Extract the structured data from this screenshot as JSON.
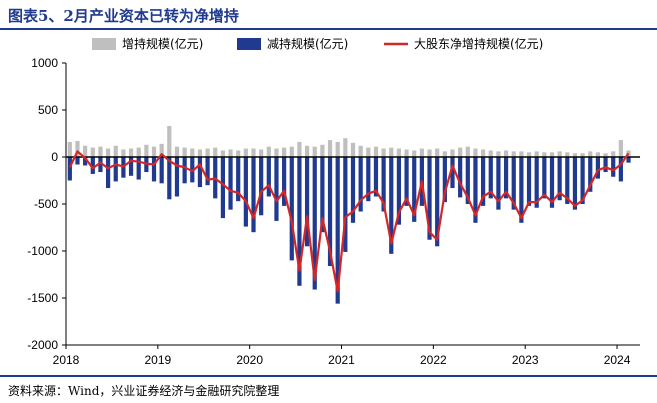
{
  "title": "图表5、2月产业资本已转为净增持",
  "source": "资料来源：Wind，兴业证券经济与金融研究院整理",
  "chart_data": {
    "type": "bar",
    "legend": [
      {
        "name": "增持规模(亿元)",
        "color": "#bfbfbf",
        "kind": "bar"
      },
      {
        "name": "减持规模(亿元)",
        "color": "#1f3a8f",
        "kind": "bar"
      },
      {
        "name": "大股东净增持规模(亿元)",
        "color": "#d62728",
        "kind": "line"
      }
    ],
    "legend_position": "top",
    "xlim": [
      2018.0,
      2024.25
    ],
    "ylim": [
      -2000,
      1000
    ],
    "yticks": [
      1000,
      500,
      0,
      -500,
      -1000,
      -1500,
      -2000
    ],
    "xticks": [
      "2018",
      "2019",
      "2020",
      "2021",
      "2022",
      "2023",
      "2024"
    ],
    "x": [
      "2018-01",
      "2018-02",
      "2018-03",
      "2018-04",
      "2018-05",
      "2018-06",
      "2018-07",
      "2018-08",
      "2018-09",
      "2018-10",
      "2018-11",
      "2018-12",
      "2019-01",
      "2019-02",
      "2019-03",
      "2019-04",
      "2019-05",
      "2019-06",
      "2019-07",
      "2019-08",
      "2019-09",
      "2019-10",
      "2019-11",
      "2019-12",
      "2020-01",
      "2020-02",
      "2020-03",
      "2020-04",
      "2020-05",
      "2020-06",
      "2020-07",
      "2020-08",
      "2020-09",
      "2020-10",
      "2020-11",
      "2020-12",
      "2021-01",
      "2021-02",
      "2021-03",
      "2021-04",
      "2021-05",
      "2021-06",
      "2021-07",
      "2021-08",
      "2021-09",
      "2021-10",
      "2021-11",
      "2021-12",
      "2022-01",
      "2022-02",
      "2022-03",
      "2022-04",
      "2022-05",
      "2022-06",
      "2022-07",
      "2022-08",
      "2022-09",
      "2022-10",
      "2022-11",
      "2022-12",
      "2023-01",
      "2023-02",
      "2023-03",
      "2023-04",
      "2023-05",
      "2023-06",
      "2023-07",
      "2023-08",
      "2023-09",
      "2023-10",
      "2023-11",
      "2023-12",
      "2024-01",
      "2024-02"
    ],
    "series": [
      {
        "name": "增持规模(亿元)",
        "values": [
          160,
          170,
          120,
          100,
          110,
          90,
          120,
          80,
          90,
          100,
          130,
          110,
          140,
          330,
          110,
          100,
          90,
          80,
          90,
          100,
          70,
          80,
          70,
          90,
          90,
          80,
          110,
          90,
          100,
          110,
          160,
          120,
          110,
          130,
          180,
          160,
          200,
          150,
          120,
          100,
          110,
          90,
          100,
          90,
          80,
          70,
          90,
          80,
          90,
          60,
          80,
          100,
          110,
          90,
          80,
          70,
          60,
          70,
          60,
          60,
          50,
          60,
          50,
          50,
          60,
          50,
          40,
          40,
          60,
          50,
          40,
          60,
          180,
          70
        ]
      },
      {
        "name": "减持规模(亿元)",
        "values": [
          -250,
          -80,
          -90,
          -180,
          -160,
          -330,
          -260,
          -220,
          -200,
          -240,
          -160,
          -260,
          -280,
          -450,
          -420,
          -280,
          -270,
          -320,
          -300,
          -440,
          -650,
          -560,
          -470,
          -740,
          -800,
          -620,
          -420,
          -680,
          -520,
          -1100,
          -1370,
          -950,
          -1410,
          -800,
          -1160,
          -1560,
          -1010,
          -700,
          -580,
          -470,
          -420,
          -580,
          -1030,
          -720,
          -520,
          -690,
          -520,
          -880,
          -950,
          -480,
          -330,
          -430,
          -500,
          -700,
          -520,
          -440,
          -560,
          -440,
          -560,
          -700,
          -520,
          -540,
          -440,
          -540,
          -460,
          -500,
          -560,
          -500,
          -370,
          -230,
          -160,
          -210,
          -260,
          -60
        ]
      },
      {
        "name": "大股东净增持规模(亿元)",
        "values": [
          -110,
          60,
          -10,
          -120,
          -60,
          -120,
          -80,
          -100,
          -40,
          -50,
          -70,
          -80,
          30,
          -40,
          -90,
          -110,
          -150,
          -80,
          -240,
          -230,
          -290,
          -360,
          -380,
          -470,
          -650,
          -370,
          -300,
          -470,
          -360,
          -690,
          -1210,
          -630,
          -1310,
          -650,
          -1000,
          -1430,
          -640,
          -580,
          -460,
          -390,
          -360,
          -490,
          -920,
          -590,
          -440,
          -620,
          -260,
          -800,
          -880,
          -380,
          -90,
          -280,
          -430,
          -620,
          -420,
          -370,
          -470,
          -370,
          -490,
          -650,
          -480,
          -480,
          -400,
          -480,
          -380,
          -440,
          -520,
          -460,
          -300,
          -140,
          -110,
          -140,
          -80,
          40
        ]
      }
    ]
  }
}
